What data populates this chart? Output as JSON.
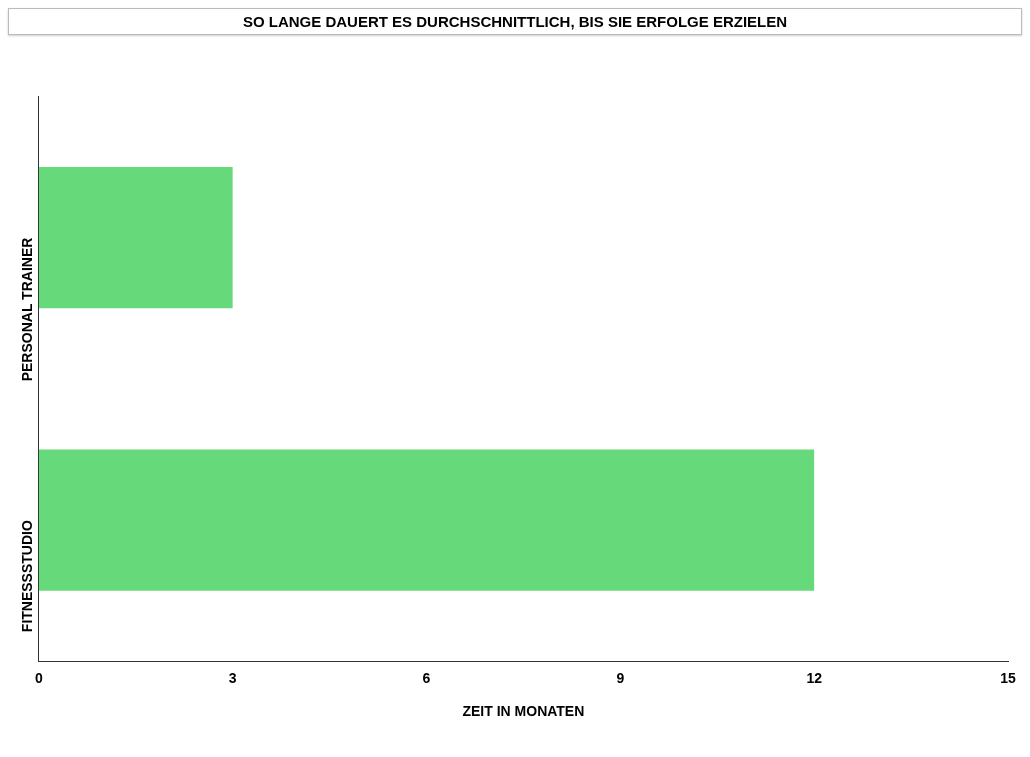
{
  "chart_data": {
    "type": "bar",
    "orientation": "horizontal",
    "title": "SO LANGE DAUERT ES DURCHSCHNITTLICH, BIS SIE ERFOLGE ERZIELEN",
    "categories": [
      "PERSONAL TRAINER",
      "FITNESSSTUDIO"
    ],
    "values": [
      3,
      12
    ],
    "color": "#66d97a",
    "xlabel": "ZEIT IN MONATEN",
    "xlim": [
      0,
      15
    ],
    "xticks": [
      0,
      3,
      6,
      9,
      12,
      15
    ],
    "grid": false,
    "legend": false
  }
}
